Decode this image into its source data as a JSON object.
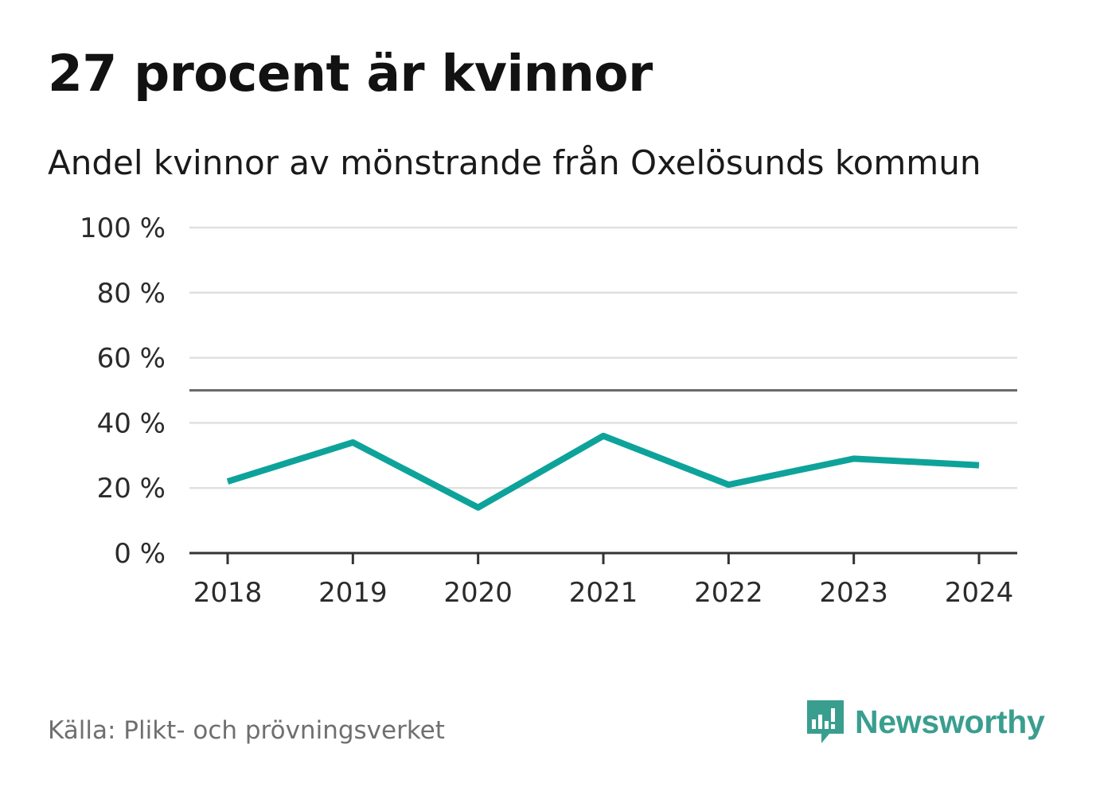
{
  "header": {
    "title": "27 procent är kvinnor",
    "subtitle": "Andel kvinnor av mönstrande från Oxelösunds kommun"
  },
  "footer": {
    "source": "Källa: Plikt- och prövningsverket",
    "brand": "Newsworthy"
  },
  "colors": {
    "line": "#0ea39a",
    "grid": "#e0e0e0",
    "axis": "#333333",
    "reference": "#6a6a6a",
    "brand": "#3a9e8f"
  },
  "chart_data": {
    "type": "line",
    "title": "27 procent är kvinnor",
    "subtitle": "Andel kvinnor av mönstrande från Oxelösunds kommun",
    "xlabel": "",
    "ylabel": "",
    "x": [
      "2018",
      "2019",
      "2020",
      "2021",
      "2022",
      "2023",
      "2024"
    ],
    "series": [
      {
        "name": "Andel kvinnor",
        "values": [
          22,
          34,
          14,
          36,
          21,
          29,
          27
        ]
      }
    ],
    "ylim": [
      0,
      100
    ],
    "yticks": [
      0,
      20,
      40,
      60,
      80,
      100
    ],
    "ytick_labels": [
      "0 %",
      "20 %",
      "40 %",
      "60 %",
      "80 %",
      "100 %"
    ],
    "reference_line": 50,
    "grid": true,
    "legend": "none"
  }
}
